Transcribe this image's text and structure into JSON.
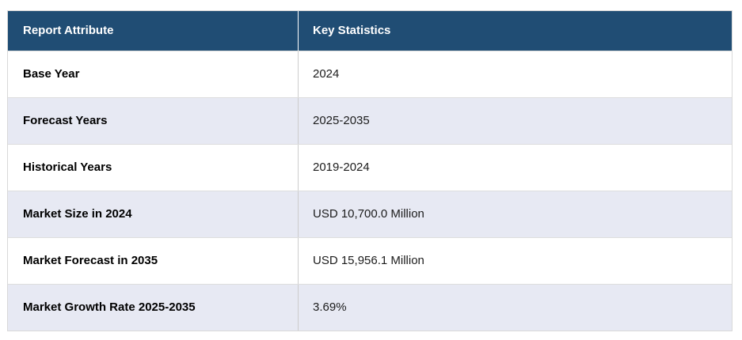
{
  "table": {
    "columns": [
      {
        "label": "Report Attribute"
      },
      {
        "label": "Key Statistics"
      }
    ],
    "rows": [
      {
        "attribute": "Base Year",
        "value": "2024"
      },
      {
        "attribute": "Forecast Years",
        "value": "2025-2035"
      },
      {
        "attribute": "Historical Years",
        "value": "2019-2024"
      },
      {
        "attribute": "Market Size in 2024",
        "value": "USD 10,700.0 Million"
      },
      {
        "attribute": "Market Forecast in 2035",
        "value": "USD 15,956.1 Million"
      },
      {
        "attribute": "Market Growth Rate 2025-2035",
        "value": "3.69%"
      }
    ]
  },
  "colors": {
    "header_background": "#204D74",
    "header_text": "#FFFFFF",
    "row_alternate_background": "#E7E9F3",
    "row_plain_background": "#FFFFFF",
    "table_border": "#D9D9D9"
  },
  "chart_data": {
    "type": "table",
    "columns": [
      "Report Attribute",
      "Key Statistics"
    ],
    "rows": [
      [
        "Base Year",
        "2024"
      ],
      [
        "Forecast Years",
        "2025-2035"
      ],
      [
        "Historical Years",
        "2019-2024"
      ],
      [
        "Market Size in 2024",
        "USD 10,700.0 Million"
      ],
      [
        "Market Forecast in 2035",
        "USD 15,956.1 Million"
      ],
      [
        "Market Growth Rate 2025-2035",
        "3.69%"
      ]
    ]
  }
}
